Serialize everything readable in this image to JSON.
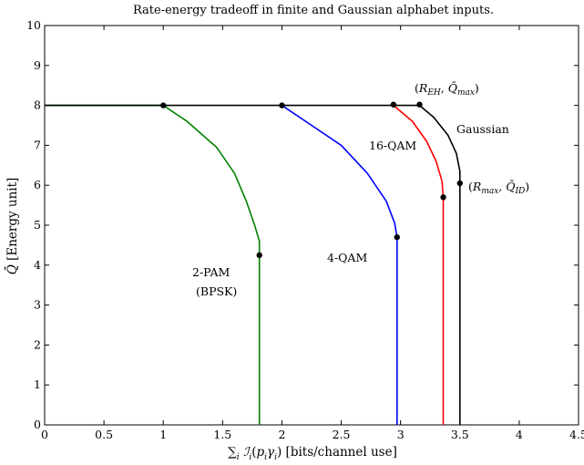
{
  "chart_data": {
    "type": "line",
    "title": "Rate-energy tradeoff in finite and Gaussian alphabet inputs.",
    "xlabel": "∑i ℐi(piγi) [bits/channel use]",
    "ylabel": "Q̄ [Energy unit]",
    "xlim": [
      0,
      4.5
    ],
    "ylim": [
      0,
      10
    ],
    "xticks": [
      "0",
      "0.5",
      "1",
      "1.5",
      "2",
      "2.5",
      "3",
      "3.5",
      "4",
      "4.5"
    ],
    "yticks": [
      "0",
      "1",
      "2",
      "3",
      "4",
      "5",
      "6",
      "7",
      "8",
      "9",
      "10"
    ],
    "grid": false,
    "series": [
      {
        "name": "2-PAM (BPSK)",
        "color": "#008000",
        "points": [
          [
            0,
            8
          ],
          [
            1,
            8
          ],
          [
            1.2,
            7.6
          ],
          [
            1.45,
            6.95
          ],
          [
            1.6,
            6.3
          ],
          [
            1.7,
            5.6
          ],
          [
            1.77,
            5.0
          ],
          [
            1.81,
            4.6
          ],
          [
            1.81,
            4.25
          ],
          [
            1.81,
            0
          ]
        ],
        "markers": [
          [
            1,
            8
          ],
          [
            1.81,
            4.25
          ]
        ]
      },
      {
        "name": "4-QAM",
        "color": "#0000ff",
        "points": [
          [
            2,
            8
          ],
          [
            2.25,
            7.5
          ],
          [
            2.5,
            7.0
          ],
          [
            2.72,
            6.3
          ],
          [
            2.88,
            5.6
          ],
          [
            2.95,
            5.05
          ],
          [
            2.97,
            4.7
          ],
          [
            2.97,
            0
          ]
        ],
        "markers": [
          [
            2,
            8
          ],
          [
            2.97,
            4.7
          ]
        ]
      },
      {
        "name": "16-QAM",
        "color": "#ff0000",
        "points": [
          [
            2.94,
            8
          ],
          [
            3.1,
            7.6
          ],
          [
            3.22,
            7.1
          ],
          [
            3.3,
            6.6
          ],
          [
            3.35,
            6.1
          ],
          [
            3.36,
            5.7
          ],
          [
            3.36,
            0
          ]
        ],
        "markers": [
          [
            2.94,
            8.02
          ],
          [
            3.36,
            5.7
          ]
        ]
      },
      {
        "name": "Gaussian",
        "color": "#000000",
        "points": [
          [
            0,
            8
          ],
          [
            3.16,
            8
          ],
          [
            3.28,
            7.7
          ],
          [
            3.4,
            7.25
          ],
          [
            3.47,
            6.8
          ],
          [
            3.5,
            6.35
          ],
          [
            3.5,
            6.05
          ],
          [
            3.5,
            0
          ]
        ],
        "markers": [
          [
            3.16,
            8.02
          ],
          [
            3.5,
            6.05
          ]
        ]
      }
    ],
    "annotations": [
      {
        "text": "2-PAM",
        "x": 1.43,
        "y": 3.7
      },
      {
        "text": "(BPSK)",
        "x": 1.43,
        "y": 3.3
      },
      {
        "text": "4-QAM",
        "x": 2.55,
        "y": 4.25
      },
      {
        "text": "16-QAM",
        "x": 2.73,
        "y": 7.2
      },
      {
        "text": "Gaussian",
        "x": 3.58,
        "y": 7.5
      },
      {
        "text": "(REH, Q̄max)",
        "x": 3.12,
        "y": 8.4
      },
      {
        "text": "(Rmax, Q̄ID)",
        "x": 3.58,
        "y": 5.95
      }
    ]
  }
}
